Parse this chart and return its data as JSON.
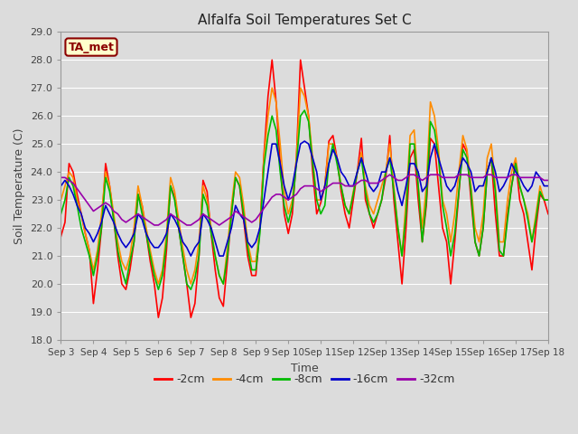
{
  "title": "Alfalfa Soil Temperatures Set C",
  "xlabel": "Time",
  "ylabel": "Soil Temperature (C)",
  "ylim": [
    18.0,
    29.0
  ],
  "yticks": [
    18.0,
    19.0,
    20.0,
    21.0,
    22.0,
    23.0,
    24.0,
    25.0,
    26.0,
    27.0,
    28.0,
    29.0
  ],
  "xtick_labels": [
    "Sep 3",
    "Sep 4",
    "Sep 5",
    "Sep 6",
    "Sep 7",
    "Sep 8",
    "Sep 9",
    "Sep 10",
    "Sep 11",
    "Sep 12",
    "Sep 13",
    "Sep 14",
    "Sep 15",
    "Sep 16",
    "Sep 17",
    "Sep 18"
  ],
  "background_color": "#dcdcdc",
  "plot_bg_color": "#dcdcdc",
  "grid_color": "#ffffff",
  "annotation_text": "TA_met",
  "annotation_bg": "#ffffcc",
  "annotation_border": "#8b0000",
  "legend_entries": [
    "-2cm",
    "-4cm",
    "-8cm",
    "-16cm",
    "-32cm"
  ],
  "line_colors": [
    "#ff0000",
    "#ff8c00",
    "#00bb00",
    "#0000cc",
    "#9900aa"
  ],
  "line_widths": [
    1.2,
    1.2,
    1.2,
    1.2,
    1.2
  ],
  "n_points": 121,
  "xtick_positions": [
    0,
    8,
    16,
    24,
    32,
    40,
    48,
    56,
    64,
    72,
    80,
    88,
    96,
    104,
    112,
    120
  ],
  "series_m2": [
    21.7,
    22.2,
    24.3,
    24.0,
    23.2,
    22.5,
    21.8,
    21.2,
    19.3,
    20.5,
    22.0,
    24.3,
    23.5,
    22.3,
    21.0,
    20.0,
    19.8,
    20.5,
    21.5,
    23.2,
    22.8,
    21.8,
    20.8,
    20.0,
    18.8,
    19.5,
    21.2,
    23.5,
    23.1,
    22.0,
    21.0,
    20.0,
    18.8,
    19.3,
    21.0,
    23.7,
    23.3,
    21.8,
    20.5,
    19.5,
    19.2,
    20.8,
    22.5,
    23.8,
    23.5,
    22.3,
    21.0,
    20.3,
    20.3,
    22.0,
    24.6,
    26.7,
    28.0,
    26.5,
    24.3,
    22.5,
    21.8,
    22.5,
    24.5,
    28.0,
    27.0,
    26.0,
    24.0,
    22.5,
    22.9,
    23.5,
    25.1,
    25.3,
    24.5,
    23.3,
    22.5,
    22.0,
    23.0,
    24.0,
    25.2,
    23.0,
    22.5,
    22.0,
    22.5,
    23.0,
    23.8,
    25.3,
    23.0,
    21.5,
    20.0,
    22.0,
    24.5,
    24.8,
    23.0,
    21.5,
    22.8,
    25.2,
    25.0,
    23.5,
    22.0,
    21.5,
    20.0,
    21.5,
    23.2,
    25.0,
    24.7,
    23.0,
    21.5,
    21.0,
    22.0,
    24.0,
    24.5,
    22.5,
    21.0,
    21.0,
    22.5,
    23.5,
    24.4,
    23.0,
    22.5,
    21.5,
    20.5,
    22.0,
    23.2,
    23.0,
    22.5
  ],
  "series_m4": [
    23.0,
    23.5,
    24.0,
    23.8,
    23.0,
    22.5,
    21.8,
    21.2,
    20.5,
    21.2,
    22.5,
    24.0,
    23.5,
    22.5,
    21.5,
    20.8,
    20.5,
    21.0,
    22.0,
    23.5,
    22.8,
    22.0,
    21.2,
    20.5,
    20.0,
    20.5,
    21.8,
    23.8,
    23.3,
    22.3,
    21.3,
    20.5,
    20.0,
    20.5,
    21.5,
    23.5,
    23.0,
    22.0,
    21.0,
    20.3,
    20.0,
    21.3,
    22.8,
    24.0,
    23.8,
    22.8,
    21.5,
    20.8,
    20.8,
    22.0,
    24.5,
    26.0,
    27.0,
    26.5,
    25.0,
    23.3,
    22.5,
    23.0,
    24.5,
    27.0,
    26.7,
    26.0,
    24.5,
    23.0,
    23.0,
    23.5,
    25.0,
    25.0,
    24.5,
    23.5,
    22.8,
    22.5,
    23.3,
    24.0,
    24.7,
    23.5,
    22.8,
    22.5,
    23.0,
    23.5,
    24.0,
    25.0,
    23.5,
    22.0,
    21.0,
    23.0,
    25.3,
    25.5,
    23.5,
    22.0,
    23.5,
    26.5,
    26.0,
    24.8,
    23.0,
    22.5,
    21.5,
    22.5,
    24.0,
    25.3,
    24.8,
    23.5,
    22.0,
    21.5,
    22.5,
    24.5,
    25.0,
    23.5,
    21.5,
    21.5,
    23.0,
    24.0,
    24.5,
    23.5,
    23.0,
    22.5,
    21.5,
    22.5,
    23.5,
    23.0,
    23.0
  ],
  "series_m8": [
    22.5,
    23.0,
    23.8,
    23.5,
    22.8,
    22.0,
    21.5,
    21.0,
    20.3,
    21.0,
    22.0,
    23.8,
    23.3,
    22.3,
    21.2,
    20.5,
    20.0,
    20.8,
    21.5,
    23.2,
    22.5,
    21.8,
    21.0,
    20.3,
    19.8,
    20.3,
    21.5,
    23.5,
    23.0,
    22.0,
    21.0,
    20.0,
    19.8,
    20.2,
    21.0,
    23.2,
    22.8,
    21.8,
    21.0,
    20.3,
    20.0,
    21.0,
    22.5,
    23.8,
    23.5,
    22.5,
    21.3,
    20.5,
    20.5,
    21.8,
    24.2,
    25.3,
    26.0,
    25.5,
    24.0,
    22.8,
    22.2,
    22.8,
    24.3,
    26.0,
    26.2,
    25.8,
    24.3,
    23.0,
    22.5,
    22.8,
    24.3,
    25.0,
    24.3,
    23.5,
    22.8,
    22.5,
    23.2,
    24.0,
    24.5,
    23.3,
    22.5,
    22.2,
    22.5,
    23.0,
    24.0,
    24.5,
    23.3,
    22.0,
    21.0,
    22.5,
    25.0,
    25.0,
    23.5,
    21.5,
    23.0,
    25.8,
    25.5,
    24.5,
    22.8,
    22.0,
    21.0,
    21.8,
    23.3,
    24.8,
    24.5,
    23.3,
    21.5,
    21.0,
    22.0,
    24.0,
    24.5,
    23.3,
    21.2,
    21.0,
    22.3,
    23.5,
    24.3,
    23.5,
    23.0,
    22.3,
    21.5,
    22.3,
    23.3,
    23.0,
    23.0
  ],
  "series_m16": [
    23.5,
    23.7,
    23.5,
    23.2,
    22.8,
    22.5,
    22.0,
    21.8,
    21.5,
    21.8,
    22.2,
    22.8,
    22.5,
    22.2,
    21.8,
    21.5,
    21.3,
    21.5,
    21.8,
    22.5,
    22.3,
    21.8,
    21.5,
    21.3,
    21.3,
    21.5,
    21.8,
    22.5,
    22.3,
    22.0,
    21.5,
    21.3,
    21.0,
    21.3,
    21.5,
    22.5,
    22.3,
    22.0,
    21.5,
    21.0,
    21.0,
    21.5,
    22.0,
    22.8,
    22.5,
    22.3,
    21.5,
    21.3,
    21.5,
    22.0,
    23.0,
    24.0,
    25.0,
    25.0,
    24.3,
    23.5,
    23.0,
    23.5,
    24.3,
    25.0,
    25.1,
    25.0,
    24.5,
    24.0,
    23.0,
    23.5,
    24.3,
    24.8,
    24.5,
    24.0,
    23.8,
    23.5,
    23.5,
    24.0,
    24.5,
    24.0,
    23.5,
    23.3,
    23.5,
    24.0,
    24.0,
    24.5,
    24.0,
    23.3,
    22.8,
    23.5,
    24.3,
    24.3,
    24.0,
    23.3,
    23.5,
    24.5,
    25.0,
    24.5,
    24.0,
    23.5,
    23.3,
    23.5,
    24.0,
    24.5,
    24.3,
    24.0,
    23.3,
    23.5,
    23.5,
    24.0,
    24.5,
    24.0,
    23.3,
    23.5,
    23.8,
    24.3,
    24.0,
    23.8,
    23.5,
    23.3,
    23.5,
    24.0,
    23.8,
    23.5,
    23.5
  ],
  "series_m32": [
    23.8,
    23.8,
    23.7,
    23.6,
    23.4,
    23.2,
    23.0,
    22.8,
    22.6,
    22.7,
    22.8,
    22.9,
    22.8,
    22.6,
    22.5,
    22.3,
    22.2,
    22.3,
    22.4,
    22.5,
    22.4,
    22.3,
    22.2,
    22.1,
    22.1,
    22.2,
    22.3,
    22.5,
    22.4,
    22.3,
    22.2,
    22.1,
    22.1,
    22.2,
    22.3,
    22.5,
    22.4,
    22.3,
    22.2,
    22.1,
    22.2,
    22.3,
    22.4,
    22.6,
    22.5,
    22.4,
    22.3,
    22.2,
    22.3,
    22.5,
    22.7,
    22.9,
    23.1,
    23.2,
    23.2,
    23.1,
    23.0,
    23.1,
    23.2,
    23.4,
    23.5,
    23.5,
    23.5,
    23.4,
    23.3,
    23.4,
    23.5,
    23.6,
    23.6,
    23.6,
    23.5,
    23.5,
    23.5,
    23.6,
    23.7,
    23.7,
    23.6,
    23.6,
    23.6,
    23.7,
    23.8,
    23.9,
    23.8,
    23.7,
    23.7,
    23.8,
    23.9,
    23.9,
    23.8,
    23.7,
    23.8,
    23.9,
    23.9,
    23.9,
    23.8,
    23.8,
    23.8,
    23.8,
    23.9,
    23.9,
    23.9,
    23.8,
    23.8,
    23.8,
    23.8,
    23.9,
    23.9,
    23.8,
    23.8,
    23.8,
    23.8,
    23.9,
    23.9,
    23.8,
    23.8,
    23.8,
    23.8,
    23.8,
    23.8,
    23.7,
    23.7
  ]
}
